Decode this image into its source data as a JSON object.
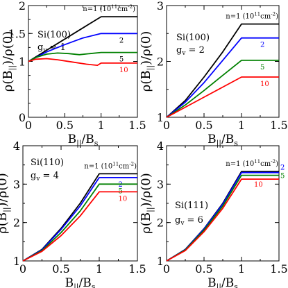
{
  "chart_data": [
    {
      "type": "line",
      "panel_label": "Si(100)",
      "gv_label": "g",
      "gv_sub": "v",
      "gv_value": "= 1",
      "xlabel_main": "B",
      "xlabel_sub": "||",
      "xlabel_tail": "/B",
      "xlabel_sub2": "s",
      "ylabel_main": "ρ(B",
      "ylabel_sub": "||",
      "ylabel_tail": ")/ρ(0)",
      "xlim": [
        0,
        1.5
      ],
      "ylim": [
        0,
        2
      ],
      "xticks": [
        "0",
        "0.5",
        "1",
        "1.5"
      ],
      "xtick_values": [
        0,
        0.5,
        1,
        1.5
      ],
      "yticks": [
        "0",
        "1",
        "1.5",
        "2"
      ],
      "ytick_values": [
        0,
        1,
        1.5,
        2
      ],
      "series": [
        {
          "label": "n=1 (10",
          "label_sup": "11",
          "label_tail": "cm",
          "label_sup2": "-2",
          "label_end": ")",
          "color": "#000000",
          "x": [
            0,
            0.25,
            0.5,
            0.75,
            1.0,
            1.5
          ],
          "y": [
            1.0,
            1.2,
            1.4,
            1.6,
            1.8,
            1.8
          ]
        },
        {
          "label": "2",
          "color": "#0000ff",
          "x": [
            0,
            0.25,
            0.5,
            0.75,
            1.0,
            1.5
          ],
          "y": [
            1.0,
            1.17,
            1.3,
            1.42,
            1.5,
            1.5
          ]
        },
        {
          "label": "5",
          "color": "#008000",
          "x": [
            0,
            0.1,
            0.25,
            0.4,
            0.55,
            0.7,
            0.85,
            1.0,
            1.5
          ],
          "y": [
            1.0,
            1.07,
            1.13,
            1.15,
            1.14,
            1.12,
            1.14,
            1.16,
            1.16
          ]
        },
        {
          "label": "10",
          "color": "#ff0000",
          "x": [
            0,
            0.1,
            0.25,
            0.4,
            0.6,
            0.8,
            0.95,
            1.0,
            1.5
          ],
          "y": [
            1.0,
            1.04,
            1.05,
            1.03,
            0.99,
            0.95,
            0.93,
            0.97,
            0.97
          ]
        }
      ]
    },
    {
      "type": "line",
      "panel_label": "Si(100)",
      "gv_label": "g",
      "gv_sub": "v",
      "gv_value": "= 2",
      "xlabel_main": "B",
      "xlabel_sub": "||",
      "xlabel_tail": "/B",
      "xlabel_sub2": "s",
      "ylabel_main": "ρ(B",
      "ylabel_sub": "||",
      "ylabel_tail": ")/ρ(0)",
      "xlim": [
        0,
        1.5
      ],
      "ylim": [
        1,
        3
      ],
      "xticks": [
        "0",
        "0.5",
        "1",
        "1.5"
      ],
      "xtick_values": [
        0,
        0.5,
        1,
        1.5
      ],
      "yticks": [
        "1",
        "2",
        "3"
      ],
      "ytick_values": [
        1,
        2,
        3
      ],
      "series": [
        {
          "label": "n=1 (10",
          "label_sup": "11",
          "label_tail": "cm",
          "label_sup2": "-2",
          "label_end": ")",
          "color": "#000000",
          "x": [
            0,
            0.25,
            0.5,
            0.75,
            1.0,
            1.5
          ],
          "y": [
            1.0,
            1.3,
            1.72,
            2.17,
            2.67,
            2.67
          ]
        },
        {
          "label": "2",
          "color": "#0000ff",
          "x": [
            0,
            0.25,
            0.5,
            0.75,
            1.0,
            1.5
          ],
          "y": [
            1.0,
            1.27,
            1.62,
            2.02,
            2.42,
            2.42
          ]
        },
        {
          "label": "5",
          "color": "#008000",
          "x": [
            0,
            0.25,
            0.5,
            0.75,
            1.0,
            1.5
          ],
          "y": [
            1.0,
            1.22,
            1.48,
            1.75,
            2.02,
            2.02
          ]
        },
        {
          "label": "10",
          "color": "#ff0000",
          "x": [
            0,
            0.25,
            0.5,
            0.75,
            1.0,
            1.5
          ],
          "y": [
            1.0,
            1.18,
            1.36,
            1.54,
            1.72,
            1.72
          ]
        }
      ]
    },
    {
      "type": "line",
      "panel_label": "Si(110)",
      "gv_label": "g",
      "gv_sub": "v",
      "gv_value": "= 4",
      "xlabel_main": "B",
      "xlabel_sub": "||",
      "xlabel_tail": "/B",
      "xlabel_sub2": "s",
      "ylabel_main": "ρ(B",
      "ylabel_sub": "||",
      "ylabel_tail": ")/ρ(0)",
      "xlim": [
        0,
        1.5
      ],
      "ylim": [
        1,
        4
      ],
      "xticks": [
        "0",
        "0.5",
        "1",
        "1.5"
      ],
      "xtick_values": [
        0,
        0.5,
        1,
        1.5
      ],
      "yticks": [
        "1",
        "2",
        "3",
        "4"
      ],
      "ytick_values": [
        1,
        2,
        3,
        4
      ],
      "series": [
        {
          "label": "n=1 (10",
          "label_sup": "11",
          "label_tail": "cm",
          "label_sup2": "-2",
          "label_end": ")",
          "color": "#000000",
          "x": [
            0,
            0.25,
            0.5,
            0.75,
            1.0,
            1.5
          ],
          "y": [
            1.0,
            1.3,
            1.85,
            2.5,
            3.27,
            3.27
          ]
        },
        {
          "label": "2",
          "color": "#0000ff",
          "x": [
            0,
            0.25,
            0.5,
            0.75,
            1.0,
            1.5
          ],
          "y": [
            1.0,
            1.29,
            1.82,
            2.43,
            3.17,
            3.17
          ]
        },
        {
          "label": "5",
          "color": "#008000",
          "x": [
            0,
            0.25,
            0.5,
            0.75,
            1.0,
            1.5
          ],
          "y": [
            1.0,
            1.27,
            1.74,
            2.3,
            3.0,
            3.0
          ]
        },
        {
          "label": "10",
          "color": "#ff0000",
          "x": [
            0,
            0.25,
            0.5,
            0.75,
            1.0,
            1.5
          ],
          "y": [
            1.0,
            1.25,
            1.66,
            2.17,
            2.8,
            2.8
          ]
        }
      ]
    },
    {
      "type": "line",
      "panel_label": "Si(111)",
      "gv_label": "g",
      "gv_sub": "v",
      "gv_value": "= 6",
      "xlabel_main": "B",
      "xlabel_sub": "||",
      "xlabel_tail": "/B",
      "xlabel_sub2": "s",
      "ylabel_main": "ρ(B",
      "ylabel_sub": "||",
      "ylabel_tail": ")/ρ(0)",
      "xlim": [
        0,
        1.5
      ],
      "ylim": [
        1,
        4
      ],
      "xticks": [
        "0",
        "0.5",
        "1",
        "1.5"
      ],
      "xtick_values": [
        0,
        0.5,
        1,
        1.5
      ],
      "yticks": [
        "1",
        "2",
        "3",
        "4"
      ],
      "ytick_values": [
        1,
        2,
        3,
        4
      ],
      "series": [
        {
          "label": "n=1 (10",
          "label_sup": "11",
          "label_tail": "cm",
          "label_sup2": "-2",
          "label_end": ")",
          "color": "#000000",
          "x": [
            0,
            0.25,
            0.5,
            0.75,
            1.0,
            1.5
          ],
          "y": [
            1.0,
            1.3,
            1.84,
            2.5,
            3.33,
            3.33
          ]
        },
        {
          "label": "2",
          "color": "#0000ff",
          "x": [
            0,
            0.25,
            0.5,
            0.75,
            1.0,
            1.5
          ],
          "y": [
            1.0,
            1.3,
            1.83,
            2.48,
            3.3,
            3.3
          ]
        },
        {
          "label": "5",
          "color": "#008000",
          "x": [
            0,
            0.25,
            0.5,
            0.75,
            1.0,
            1.5
          ],
          "y": [
            1.0,
            1.29,
            1.8,
            2.43,
            3.23,
            3.23
          ]
        },
        {
          "label": "10",
          "color": "#ff0000",
          "x": [
            0,
            0.25,
            0.5,
            0.75,
            1.0,
            1.5
          ],
          "y": [
            1.0,
            1.27,
            1.76,
            2.37,
            3.13,
            3.13
          ]
        }
      ]
    }
  ]
}
